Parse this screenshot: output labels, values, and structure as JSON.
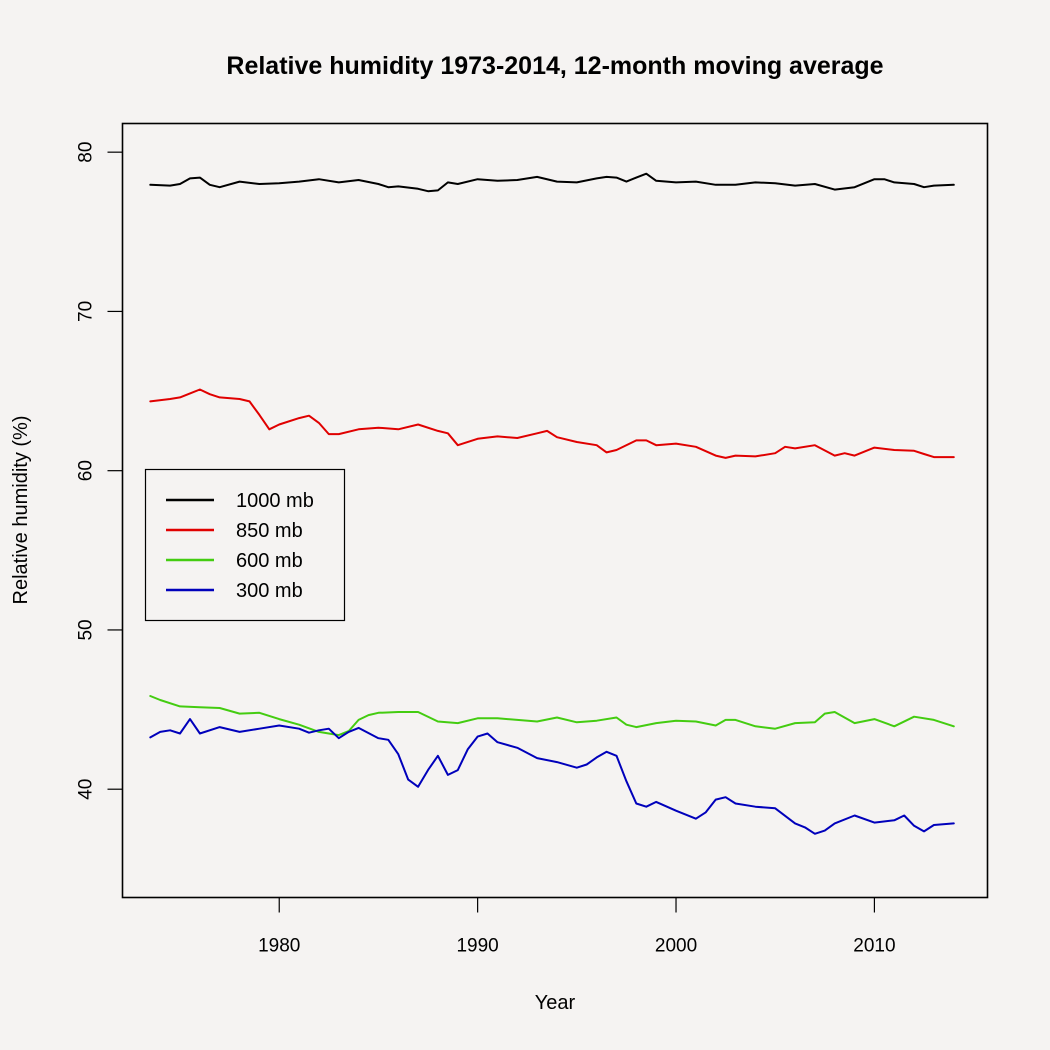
{
  "chart_data": {
    "type": "line",
    "title": "Relative humidity 1973-2014, 12-month moving average",
    "xlabel": "Year",
    "ylabel": "Relative humidity (%)",
    "xlim": [
      1972.1,
      2015.7
    ],
    "ylim": [
      33.2,
      81.8
    ],
    "xticks": [
      1980,
      1990,
      2000,
      2010
    ],
    "yticks": [
      40,
      50,
      60,
      70,
      80
    ],
    "grid": false,
    "legend_position": "center-left",
    "series": [
      {
        "name": "1000 mb",
        "color": "#000000",
        "x": [
          1973.5,
          1974.5,
          1975,
          1975.5,
          1976,
          1976.5,
          1977,
          1978,
          1979,
          1980,
          1981,
          1982,
          1983,
          1984,
          1985,
          1985.5,
          1986,
          1987,
          1987.5,
          1988,
          1988.5,
          1989,
          1990,
          1991,
          1992,
          1993,
          1994,
          1995,
          1996,
          1996.5,
          1997,
          1997.5,
          1998,
          1998.5,
          1999,
          2000,
          2001,
          2002,
          2003,
          2004,
          2005,
          2006,
          2007,
          2008,
          2009,
          2010,
          2010.5,
          2011,
          2012,
          2012.5,
          2013,
          2014
        ],
        "y": [
          77.95,
          77.9,
          78.0,
          78.35,
          78.4,
          77.95,
          77.8,
          78.15,
          78.0,
          78.05,
          78.15,
          78.3,
          78.1,
          78.25,
          78.0,
          77.8,
          77.85,
          77.7,
          77.55,
          77.6,
          78.1,
          78.0,
          78.3,
          78.2,
          78.25,
          78.45,
          78.15,
          78.1,
          78.35,
          78.45,
          78.4,
          78.15,
          78.4,
          78.65,
          78.2,
          78.1,
          78.15,
          77.95,
          77.95,
          78.1,
          78.05,
          77.9,
          78.0,
          77.65,
          77.8,
          78.3,
          78.3,
          78.1,
          78.0,
          77.8,
          77.9,
          77.95
        ]
      },
      {
        "name": "850 mb",
        "color": "#e00000",
        "x": [
          1973.5,
          1974.5,
          1975,
          1975.5,
          1976,
          1976.5,
          1977,
          1978,
          1978.5,
          1979,
          1979.5,
          1980,
          1981,
          1981.5,
          1982,
          1982.5,
          1983,
          1984,
          1985,
          1986,
          1987,
          1988,
          1988.5,
          1989,
          1990,
          1991,
          1992,
          1993,
          1993.5,
          1994,
          1995,
          1996,
          1996.5,
          1997,
          1998,
          1998.5,
          1999,
          2000,
          2001,
          2002,
          2002.5,
          2003,
          2004,
          2005,
          2005.5,
          2006,
          2007,
          2008,
          2008.5,
          2009,
          2010,
          2011,
          2012,
          2012.5,
          2013,
          2014
        ],
        "y": [
          64.35,
          64.5,
          64.6,
          64.85,
          65.1,
          64.8,
          64.6,
          64.5,
          64.35,
          63.5,
          62.6,
          62.9,
          63.3,
          63.45,
          63.0,
          62.3,
          62.3,
          62.6,
          62.7,
          62.6,
          62.9,
          62.5,
          62.35,
          61.6,
          62.0,
          62.15,
          62.05,
          62.35,
          62.5,
          62.1,
          61.8,
          61.6,
          61.15,
          61.3,
          61.9,
          61.9,
          61.6,
          61.7,
          61.5,
          60.95,
          60.8,
          60.95,
          60.9,
          61.1,
          61.5,
          61.4,
          61.6,
          60.95,
          61.1,
          60.95,
          61.45,
          61.3,
          61.25,
          61.05,
          60.85,
          60.85
        ]
      },
      {
        "name": "600 mb",
        "color": "#44cc11",
        "x": [
          1973.5,
          1974,
          1975,
          1976,
          1977,
          1978,
          1979,
          1980,
          1981,
          1982,
          1982.5,
          1983,
          1983.5,
          1984,
          1984.5,
          1985,
          1986,
          1987,
          1988,
          1989,
          1990,
          1991,
          1992,
          1993,
          1994,
          1995,
          1996,
          1997,
          1997.5,
          1998,
          1999,
          2000,
          2001,
          2002,
          2002.5,
          2003,
          2004,
          2005,
          2006,
          2007,
          2007.5,
          2008,
          2009,
          2010,
          2011,
          2012,
          2013,
          2014
        ],
        "y": [
          45.85,
          45.6,
          45.2,
          45.15,
          45.1,
          44.75,
          44.8,
          44.4,
          44.05,
          43.6,
          43.5,
          43.4,
          43.65,
          44.35,
          44.65,
          44.8,
          44.85,
          44.85,
          44.25,
          44.15,
          44.45,
          44.45,
          44.35,
          44.25,
          44.5,
          44.2,
          44.3,
          44.5,
          44.05,
          43.9,
          44.15,
          44.3,
          44.25,
          44.0,
          44.35,
          44.35,
          43.95,
          43.8,
          44.15,
          44.2,
          44.75,
          44.85,
          44.15,
          44.4,
          43.95,
          44.55,
          44.35,
          43.95
        ]
      },
      {
        "name": "300 mb",
        "color": "#0000bb",
        "x": [
          1973.5,
          1974,
          1974.5,
          1975,
          1975.5,
          1976,
          1977,
          1978,
          1979,
          1980,
          1981,
          1981.5,
          1982,
          1982.5,
          1983,
          1983.5,
          1984,
          1985,
          1985.5,
          1986,
          1986.5,
          1987,
          1987.5,
          1988,
          1988.5,
          1989,
          1989.5,
          1990,
          1990.5,
          1991,
          1992,
          1993,
          1994,
          1995,
          1995.5,
          1996,
          1996.5,
          1997,
          1997.5,
          1998,
          1998.5,
          1999,
          2000,
          2001,
          2001.5,
          2002,
          2002.5,
          2003,
          2004,
          2005,
          2006,
          2006.5,
          2007,
          2007.5,
          2008,
          2009,
          2010,
          2011,
          2011.5,
          2012,
          2012.5,
          2013,
          2014
        ],
        "y": [
          43.25,
          43.6,
          43.7,
          43.5,
          44.4,
          43.5,
          43.9,
          43.6,
          43.8,
          44.0,
          43.8,
          43.55,
          43.7,
          43.8,
          43.2,
          43.6,
          43.85,
          43.2,
          43.1,
          42.2,
          40.6,
          40.15,
          41.2,
          42.1,
          40.9,
          41.2,
          42.5,
          43.3,
          43.5,
          42.95,
          42.6,
          41.95,
          41.7,
          41.35,
          41.55,
          42.0,
          42.35,
          42.1,
          40.5,
          39.1,
          38.9,
          39.2,
          38.65,
          38.15,
          38.55,
          39.35,
          39.5,
          39.1,
          38.9,
          38.8,
          37.85,
          37.6,
          37.2,
          37.4,
          37.85,
          38.35,
          37.9,
          38.05,
          38.35,
          37.7,
          37.35,
          37.75,
          37.85
        ]
      }
    ]
  }
}
